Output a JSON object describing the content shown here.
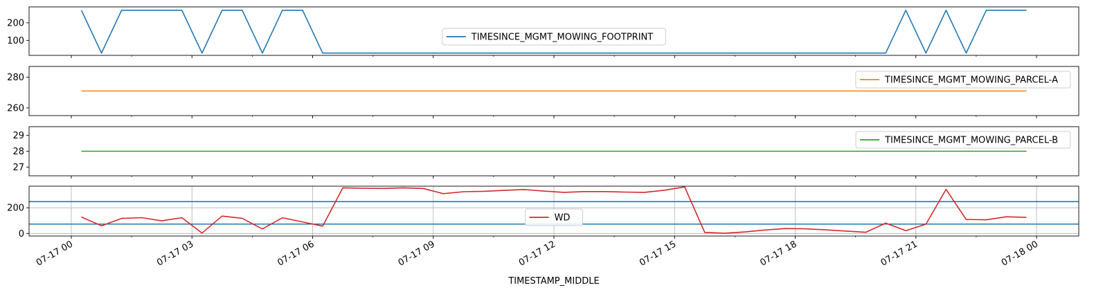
{
  "chart_data": {
    "type": "line",
    "layout": "4 stacked panels, shared x-axis",
    "x_axis": {
      "label": "TIMESTAMP_MIDDLE",
      "range_hours": [
        0,
        24.8
      ],
      "ticks": [
        {
          "hour": 0,
          "label": "07-17 00"
        },
        {
          "hour": 3,
          "label": "07-17 03"
        },
        {
          "hour": 6,
          "label": "07-17 06"
        },
        {
          "hour": 9,
          "label": "07-17 09"
        },
        {
          "hour": 12,
          "label": "07-17 12"
        },
        {
          "hour": 15,
          "label": "07-17 15"
        },
        {
          "hour": 18,
          "label": "07-17 18"
        },
        {
          "hour": 21,
          "label": "07-17 21"
        },
        {
          "hour": 24,
          "label": "07-18 00"
        }
      ]
    },
    "panels": [
      {
        "name": "footprint",
        "ylim": [
          15,
          290
        ],
        "yticks": [
          {
            "v": 100,
            "label": "100"
          },
          {
            "v": 200,
            "label": "200"
          }
        ],
        "grid": false,
        "legend": {
          "position": "center",
          "label": "TIMESINCE_MGMT_MOWING_FOOTPRINT"
        },
        "series": [
          {
            "name": "TIMESINCE_MGMT_MOWING_FOOTPRINT",
            "color": "#1f77b4",
            "x": [
              0.25,
              0.75,
              1.25,
              1.75,
              2.25,
              2.75,
              3.25,
              3.75,
              4.25,
              4.75,
              5.25,
              5.75,
              6.25,
              6.75,
              7.25,
              7.75,
              8.25,
              8.75,
              9.25,
              9.75,
              10.25,
              10.75,
              11.25,
              11.75,
              12.25,
              12.75,
              13.25,
              13.75,
              14.25,
              14.75,
              15.25,
              15.75,
              16.25,
              16.75,
              17.25,
              17.75,
              18.25,
              18.75,
              19.25,
              19.75,
              20.25,
              20.75,
              21.25,
              21.75,
              22.25,
              22.75,
              23.25,
              23.75
            ],
            "y": [
              271,
              28,
              271,
              271,
              271,
              271,
              28,
              271,
              271,
              28,
              271,
              271,
              28,
              28,
              28,
              28,
              28,
              28,
              28,
              28,
              28,
              28,
              28,
              28,
              28,
              28,
              28,
              28,
              28,
              28,
              28,
              28,
              28,
              28,
              28,
              28,
              28,
              28,
              28,
              28,
              28,
              271,
              28,
              271,
              28,
              271,
              271,
              271
            ]
          }
        ]
      },
      {
        "name": "parcel-a",
        "ylim": [
          255,
          287
        ],
        "yticks": [
          {
            "v": 260,
            "label": "260"
          },
          {
            "v": 280,
            "label": "280"
          }
        ],
        "grid": false,
        "legend": {
          "position": "upper right",
          "label": "TIMESINCE_MGMT_MOWING_PARCEL-A"
        },
        "series": [
          {
            "name": "TIMESINCE_MGMT_MOWING_PARCEL-A",
            "color": "#ff7f0e",
            "x": [
              0.25,
              23.75
            ],
            "y": [
              271,
              271
            ]
          }
        ]
      },
      {
        "name": "parcel-b",
        "ylim": [
          26.45,
          29.55
        ],
        "yticks": [
          {
            "v": 27,
            "label": "27"
          },
          {
            "v": 28,
            "label": "28"
          },
          {
            "v": 29,
            "label": "29"
          }
        ],
        "grid": false,
        "legend": {
          "position": "upper right",
          "label": "TIMESINCE_MGMT_MOWING_PARCEL-B"
        },
        "series": [
          {
            "name": "TIMESINCE_MGMT_MOWING_PARCEL-B",
            "color": "#2ca02c",
            "x": [
              0.25,
              23.75
            ],
            "y": [
              28,
              28
            ]
          }
        ]
      },
      {
        "name": "wd",
        "ylim": [
          -20,
          368
        ],
        "yticks": [
          {
            "v": 0,
            "label": "0"
          },
          {
            "v": 200,
            "label": "200"
          }
        ],
        "grid": true,
        "legend": {
          "position": "center",
          "label": "WD"
        },
        "hlines": [
          {
            "y": 248,
            "color": "#1f77b4"
          },
          {
            "y": 73,
            "color": "#1f77b4"
          }
        ],
        "series": [
          {
            "name": "WD",
            "color": "#d62728",
            "x": [
              0.25,
              0.75,
              1.25,
              1.75,
              2.25,
              2.75,
              3.25,
              3.75,
              4.25,
              4.75,
              5.25,
              5.75,
              6.25,
              6.75,
              7.25,
              7.75,
              8.25,
              8.75,
              9.25,
              9.75,
              10.25,
              10.75,
              11.25,
              11.75,
              12.25,
              12.75,
              13.25,
              13.75,
              14.25,
              14.75,
              15.25,
              15.75,
              16.25,
              16.75,
              17.25,
              17.75,
              18.25,
              18.75,
              19.25,
              19.75,
              20.25,
              20.75,
              21.25,
              21.75,
              22.25,
              22.75,
              23.25,
              23.75
            ],
            "y": [
              128,
              60,
              117,
              123,
              98,
              123,
              3,
              135,
              118,
              35,
              122,
              90,
              57,
              355,
              352,
              350,
              355,
              350,
              310,
              325,
              328,
              335,
              342,
              330,
              320,
              326,
              326,
              322,
              320,
              337,
              362,
              8,
              2,
              12,
              27,
              38,
              36,
              28,
              19,
              9,
              80,
              22,
              72,
              343,
              109,
              106,
              130,
              125
            ]
          }
        ]
      }
    ]
  }
}
